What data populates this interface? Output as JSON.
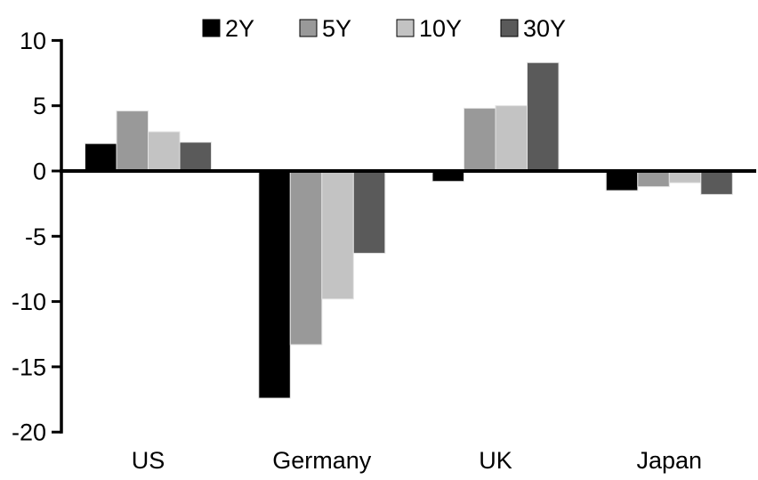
{
  "chart_data": {
    "type": "bar",
    "title": "",
    "xlabel": "",
    "ylabel": "",
    "categories": [
      "US",
      "Germany",
      "UK",
      "Japan"
    ],
    "series": [
      {
        "name": "2Y",
        "color": "#000000",
        "values": [
          2.1,
          -17.4,
          -0.8,
          -1.5
        ]
      },
      {
        "name": "5Y",
        "color": "#999999",
        "values": [
          4.6,
          -13.3,
          4.8,
          -1.2
        ]
      },
      {
        "name": "10Y",
        "color": "#c3c3c3",
        "values": [
          3.0,
          -9.8,
          5.0,
          -0.9
        ]
      },
      {
        "name": "30Y",
        "color": "#5a5a5a",
        "values": [
          2.2,
          -6.3,
          8.3,
          -1.8
        ]
      }
    ],
    "ylim": [
      -20,
      10
    ],
    "ytick_interval": 5,
    "ytick_labels": [
      "10",
      "5",
      "0",
      "-5",
      "-10",
      "-15",
      "-20"
    ],
    "ytick_values": [
      10,
      5,
      0,
      -5,
      -10,
      -15,
      -20
    ],
    "grid": false,
    "legend_position": "top",
    "axis_color": "#000000",
    "bar_edge_color": "#e2e2e2",
    "background": "#ffffff"
  }
}
